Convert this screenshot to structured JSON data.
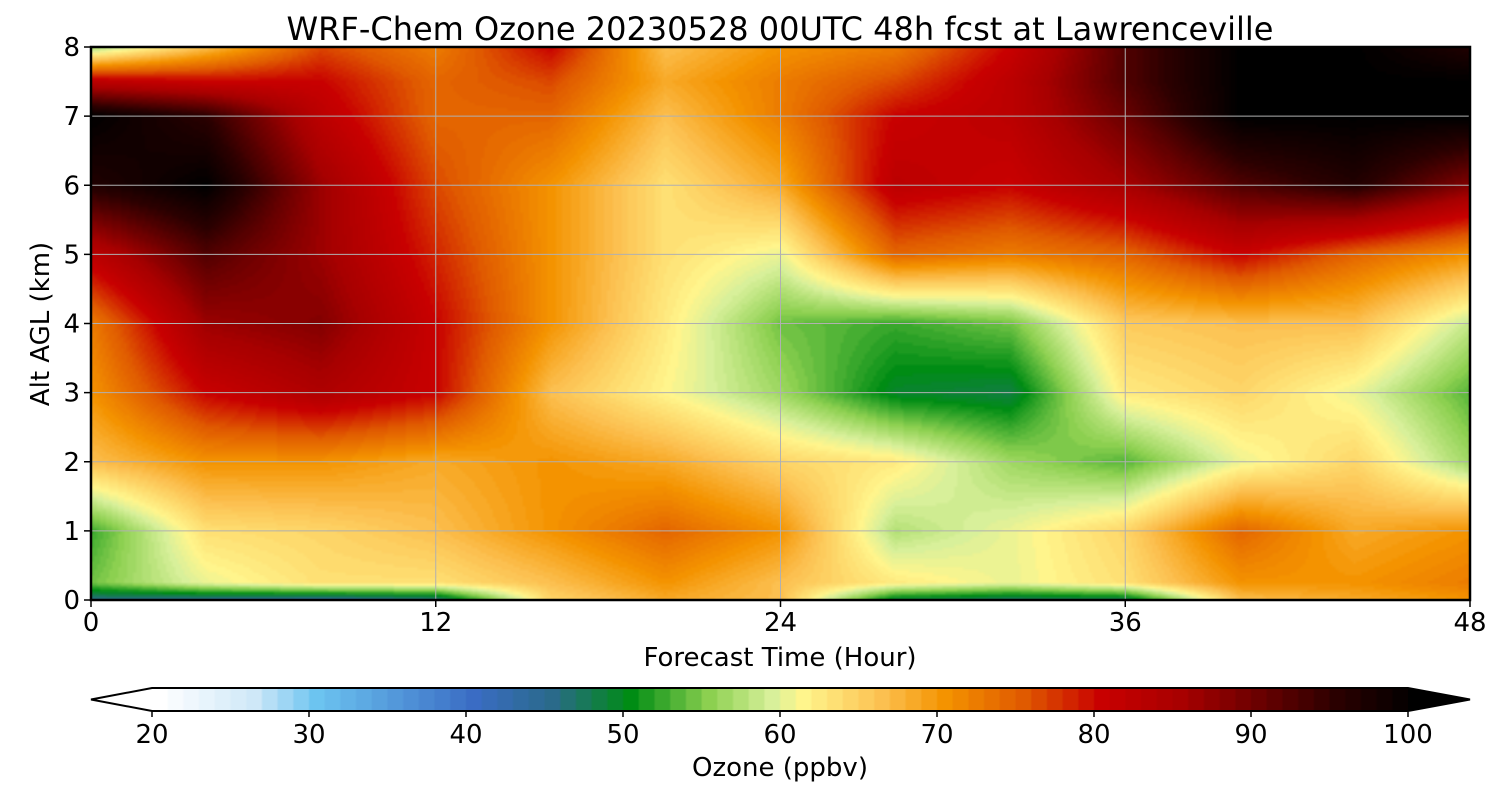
{
  "chart_data": {
    "type": "heatmap",
    "title": "WRF-Chem Ozone  20230528 00UTC 48h fcst at Lawrenceville",
    "xlabel": "Forecast Time (Hour)",
    "ylabel": "Alt AGL (km)",
    "xlim": [
      0,
      48
    ],
    "ylim": [
      0,
      8
    ],
    "x_ticks": [
      "0",
      "12",
      "24",
      "36",
      "48"
    ],
    "y_ticks": [
      "0",
      "1",
      "2",
      "3",
      "4",
      "5",
      "6",
      "7",
      "8"
    ],
    "grid": true,
    "x": [
      0,
      4,
      8,
      12,
      16,
      20,
      24,
      28,
      32,
      36,
      40,
      44,
      48
    ],
    "y": [
      0,
      0.25,
      1,
      2,
      3,
      4,
      5,
      6,
      7,
      7.5,
      8
    ],
    "z": [
      [
        45,
        44,
        43,
        45,
        64,
        68,
        66,
        48,
        46,
        47,
        66,
        68,
        70
      ],
      [
        54,
        60,
        63,
        63,
        66,
        70,
        66,
        62,
        60,
        63,
        70,
        70,
        72
      ],
      [
        52,
        63,
        64,
        66,
        70,
        74,
        70,
        57,
        60,
        64,
        74,
        68,
        70
      ],
      [
        66,
        70,
        70,
        68,
        70,
        68,
        64,
        62,
        56,
        53,
        60,
        64,
        56
      ],
      [
        70,
        80,
        84,
        80,
        66,
        61,
        56,
        49,
        48,
        62,
        64,
        60,
        53
      ],
      [
        72,
        86,
        88,
        80,
        70,
        62,
        54,
        52,
        54,
        65,
        66,
        66,
        58
      ],
      [
        82,
        92,
        86,
        78,
        70,
        63,
        60,
        74,
        72,
        74,
        80,
        74,
        70
      ],
      [
        96,
        100,
        86,
        76,
        70,
        63,
        68,
        82,
        80,
        85,
        92,
        96,
        88
      ],
      [
        100,
        95,
        82,
        74,
        74,
        66,
        72,
        80,
        82,
        90,
        100,
        100,
        100
      ],
      [
        82,
        80,
        80,
        74,
        76,
        68,
        72,
        76,
        82,
        92,
        100,
        100,
        100
      ],
      [
        56,
        66,
        76,
        72,
        80,
        66,
        70,
        72,
        80,
        92,
        100,
        100,
        96
      ]
    ],
    "colorbar": {
      "label": "Ozone  (ppbv)",
      "min": 20,
      "max": 100,
      "ticks": [
        "20",
        "30",
        "40",
        "50",
        "60",
        "70",
        "80",
        "90",
        "100"
      ],
      "extend": "both"
    }
  }
}
